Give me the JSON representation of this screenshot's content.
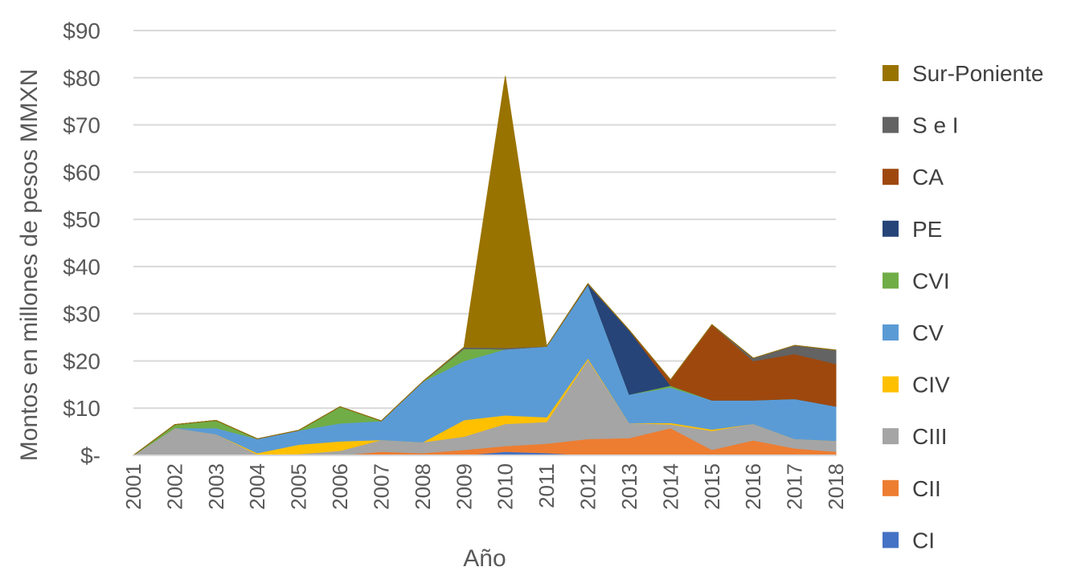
{
  "chart_data": {
    "type": "area",
    "stacked": true,
    "title": "",
    "xlabel": "Año",
    "ylabel": "Montos en millones de pesos MMXN",
    "ylim": [
      0,
      90
    ],
    "y_ticks": [
      0,
      10,
      20,
      30,
      40,
      50,
      60,
      70,
      80,
      90
    ],
    "y_tick_labels": [
      "$-",
      "$10",
      "$20",
      "$30",
      "$40",
      "$50",
      "$60",
      "$70",
      "$80",
      "$90"
    ],
    "grid": true,
    "legend_position": "right",
    "categories": [
      "2001",
      "2002",
      "2003",
      "2004",
      "2005",
      "2006",
      "2007",
      "2008",
      "2009",
      "2010",
      "2011",
      "2012",
      "2013",
      "2014",
      "2015",
      "2016",
      "2017",
      "2018"
    ],
    "series": [
      {
        "name": "CI",
        "color": "#4472C4",
        "values": [
          0,
          0,
          0,
          0,
          0,
          0,
          0,
          0,
          0,
          0.8,
          0.5,
          0,
          0.2,
          0,
          0,
          0,
          0,
          0
        ]
      },
      {
        "name": "CII",
        "color": "#ED7D31",
        "values": [
          0,
          0,
          0,
          0,
          0,
          0,
          0.8,
          0.5,
          1.2,
          1.2,
          2.0,
          3.5,
          3.5,
          5.8,
          1.2,
          3.2,
          1.5,
          0.8
        ]
      },
      {
        "name": "CIII",
        "color": "#A5A5A5",
        "values": [
          0,
          5.8,
          4.5,
          0.2,
          0.3,
          1.0,
          2.5,
          2.3,
          2.8,
          4.7,
          4.6,
          16.8,
          3.2,
          0.8,
          4.0,
          3.5,
          2.0,
          2.3
        ]
      },
      {
        "name": "CIV",
        "color": "#FFC000",
        "values": [
          0,
          0,
          0,
          0.3,
          2.0,
          2.0,
          0,
          0,
          3.5,
          1.8,
          1.0,
          0.3,
          0,
          0.3,
          0.3,
          0,
          0,
          0
        ]
      },
      {
        "name": "CV",
        "color": "#5B9BD5",
        "values": [
          0,
          0,
          1.3,
          3.0,
          3.0,
          3.8,
          4.0,
          12.8,
          12.5,
          14.0,
          15.0,
          15.6,
          6.0,
          7.5,
          6.2,
          5.0,
          8.5,
          7.3
        ]
      },
      {
        "name": "CVI",
        "color": "#70AD47",
        "values": [
          0,
          0.7,
          1.6,
          0,
          0,
          3.5,
          0,
          0,
          2.6,
          0,
          0,
          0,
          0,
          0.4,
          0,
          0,
          0,
          0
        ]
      },
      {
        "name": "PE",
        "color": "#264478",
        "values": [
          0,
          0,
          0,
          0,
          0,
          0,
          0,
          0,
          0,
          0,
          0,
          0,
          13.6,
          0,
          0,
          0,
          0,
          0
        ]
      },
      {
        "name": "CA",
        "color": "#9E480E",
        "values": [
          0,
          0,
          0,
          0,
          0,
          0,
          0,
          0,
          0,
          0,
          0,
          0,
          0,
          1.2,
          16.0,
          8.3,
          9.5,
          9.0
        ]
      },
      {
        "name": "S e I",
        "color": "#636363",
        "values": [
          0,
          0,
          0,
          0,
          0,
          0,
          0,
          0,
          0.3,
          0.3,
          0,
          0.2,
          0,
          0,
          0,
          0.6,
          1.8,
          2.9
        ]
      },
      {
        "name": "Sur-Poniente",
        "color": "#997300",
        "values": [
          0,
          0,
          0,
          0,
          0,
          0,
          0,
          0,
          0,
          57.5,
          0,
          0,
          0,
          0,
          0,
          0,
          0,
          0
        ]
      }
    ]
  }
}
